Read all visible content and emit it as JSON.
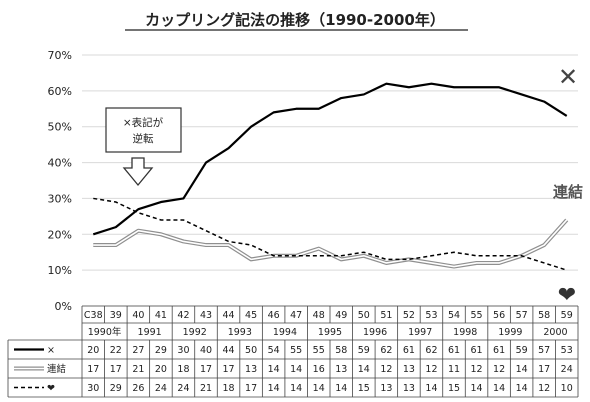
{
  "chart_data": {
    "type": "line",
    "title": "カップリング記法の推移（1990-2000年）",
    "y_ticks": [
      "0%",
      "10%",
      "20%",
      "30%",
      "40%",
      "50%",
      "60%",
      "70%"
    ],
    "ylim": [
      0,
      70
    ],
    "grid": "horizontal",
    "x_row1": [
      "C38",
      "39",
      "40",
      "41",
      "42",
      "43",
      "44",
      "45",
      "46",
      "47",
      "48",
      "49",
      "50",
      "51",
      "52",
      "53",
      "54",
      "55",
      "56",
      "57",
      "58",
      "59"
    ],
    "x_row2": [
      {
        "label": "1990年",
        "from": 0,
        "to": 1
      },
      {
        "label": "1991",
        "from": 2,
        "to": 3
      },
      {
        "label": "1992",
        "from": 4,
        "to": 5
      },
      {
        "label": "1993",
        "from": 6,
        "to": 7
      },
      {
        "label": "1994",
        "from": 8,
        "to": 9
      },
      {
        "label": "1995",
        "from": 10,
        "to": 11
      },
      {
        "label": "1996",
        "from": 12,
        "to": 13
      },
      {
        "label": "1997",
        "from": 14,
        "to": 15
      },
      {
        "label": "1998",
        "from": 16,
        "to": 17
      },
      {
        "label": "1999",
        "from": 18,
        "to": 19
      },
      {
        "label": "2000",
        "from": 20,
        "to": 21
      }
    ],
    "series": [
      {
        "name": "×",
        "style": "solid-black",
        "color": "#000000",
        "values": [
          20,
          22,
          27,
          29,
          30,
          40,
          44,
          50,
          54,
          55,
          55,
          58,
          59,
          62,
          61,
          62,
          61,
          61,
          61,
          59,
          57,
          53
        ]
      },
      {
        "name": "連結",
        "style": "double-gray",
        "color": "#9e9e9e",
        "values": [
          17,
          17,
          21,
          20,
          18,
          17,
          17,
          13,
          14,
          14,
          16,
          13,
          14,
          12,
          13,
          12,
          11,
          12,
          12,
          14,
          17,
          24
        ]
      },
      {
        "name": "❤",
        "style": "dashed-black",
        "color": "#000000",
        "values": [
          30,
          29,
          26,
          24,
          24,
          21,
          18,
          17,
          14,
          14,
          14,
          14,
          15,
          13,
          13,
          14,
          15,
          14,
          14,
          14,
          12,
          10
        ]
      }
    ],
    "annotations": {
      "callout_line1": "×表記が",
      "callout_line2": "逆転",
      "x_label": "✕",
      "renketsu_label": "連結",
      "heart_label": "❤"
    }
  }
}
